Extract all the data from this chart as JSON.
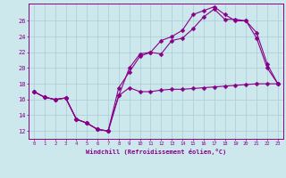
{
  "title": "",
  "xlabel": "Windchill (Refroidissement éolien,°C)",
  "background_color": "#cce8ec",
  "grid_color": "#aaccd4",
  "line_color": "#880088",
  "xlim": [
    -0.5,
    23.5
  ],
  "ylim": [
    11.0,
    28.2
  ],
  "yticks": [
    12,
    14,
    16,
    18,
    20,
    22,
    24,
    26
  ],
  "xticks": [
    0,
    1,
    2,
    3,
    4,
    5,
    6,
    7,
    8,
    9,
    10,
    11,
    12,
    13,
    14,
    15,
    16,
    17,
    18,
    19,
    20,
    21,
    22,
    23
  ],
  "line1_x": [
    0,
    1,
    2,
    3,
    4,
    5,
    6,
    7,
    8,
    9,
    10,
    11,
    12,
    13,
    14,
    15,
    16,
    17,
    18,
    19,
    20,
    21,
    22,
    23
  ],
  "line1_y": [
    17.0,
    16.3,
    16.0,
    16.2,
    13.5,
    13.0,
    12.2,
    12.0,
    16.5,
    17.5,
    17.0,
    17.0,
    17.2,
    17.3,
    17.3,
    17.4,
    17.5,
    17.6,
    17.7,
    17.8,
    17.9,
    18.0,
    18.0,
    18.0
  ],
  "line2_x": [
    0,
    1,
    2,
    3,
    4,
    5,
    6,
    7,
    8,
    9,
    10,
    11,
    12,
    13,
    14,
    15,
    16,
    17,
    18,
    19,
    20,
    21,
    22,
    23
  ],
  "line2_y": [
    17.0,
    16.3,
    16.0,
    16.2,
    13.5,
    13.0,
    12.2,
    12.0,
    16.5,
    20.0,
    21.8,
    22.0,
    21.8,
    23.5,
    23.8,
    25.0,
    26.5,
    27.5,
    26.2,
    26.2,
    26.0,
    24.5,
    20.5,
    18.0
  ],
  "line3_x": [
    0,
    1,
    2,
    3,
    4,
    5,
    6,
    7,
    8,
    9,
    10,
    11,
    12,
    13,
    14,
    15,
    16,
    17,
    18,
    19,
    20,
    21,
    22,
    23
  ],
  "line3_y": [
    17.0,
    16.3,
    16.0,
    16.2,
    13.5,
    13.0,
    12.2,
    12.0,
    17.5,
    19.5,
    21.5,
    22.0,
    23.5,
    24.0,
    24.8,
    26.8,
    27.3,
    27.8,
    26.8,
    26.0,
    26.0,
    23.8,
    20.0,
    18.0
  ],
  "marker_size": 2.5,
  "linewidth": 0.8
}
